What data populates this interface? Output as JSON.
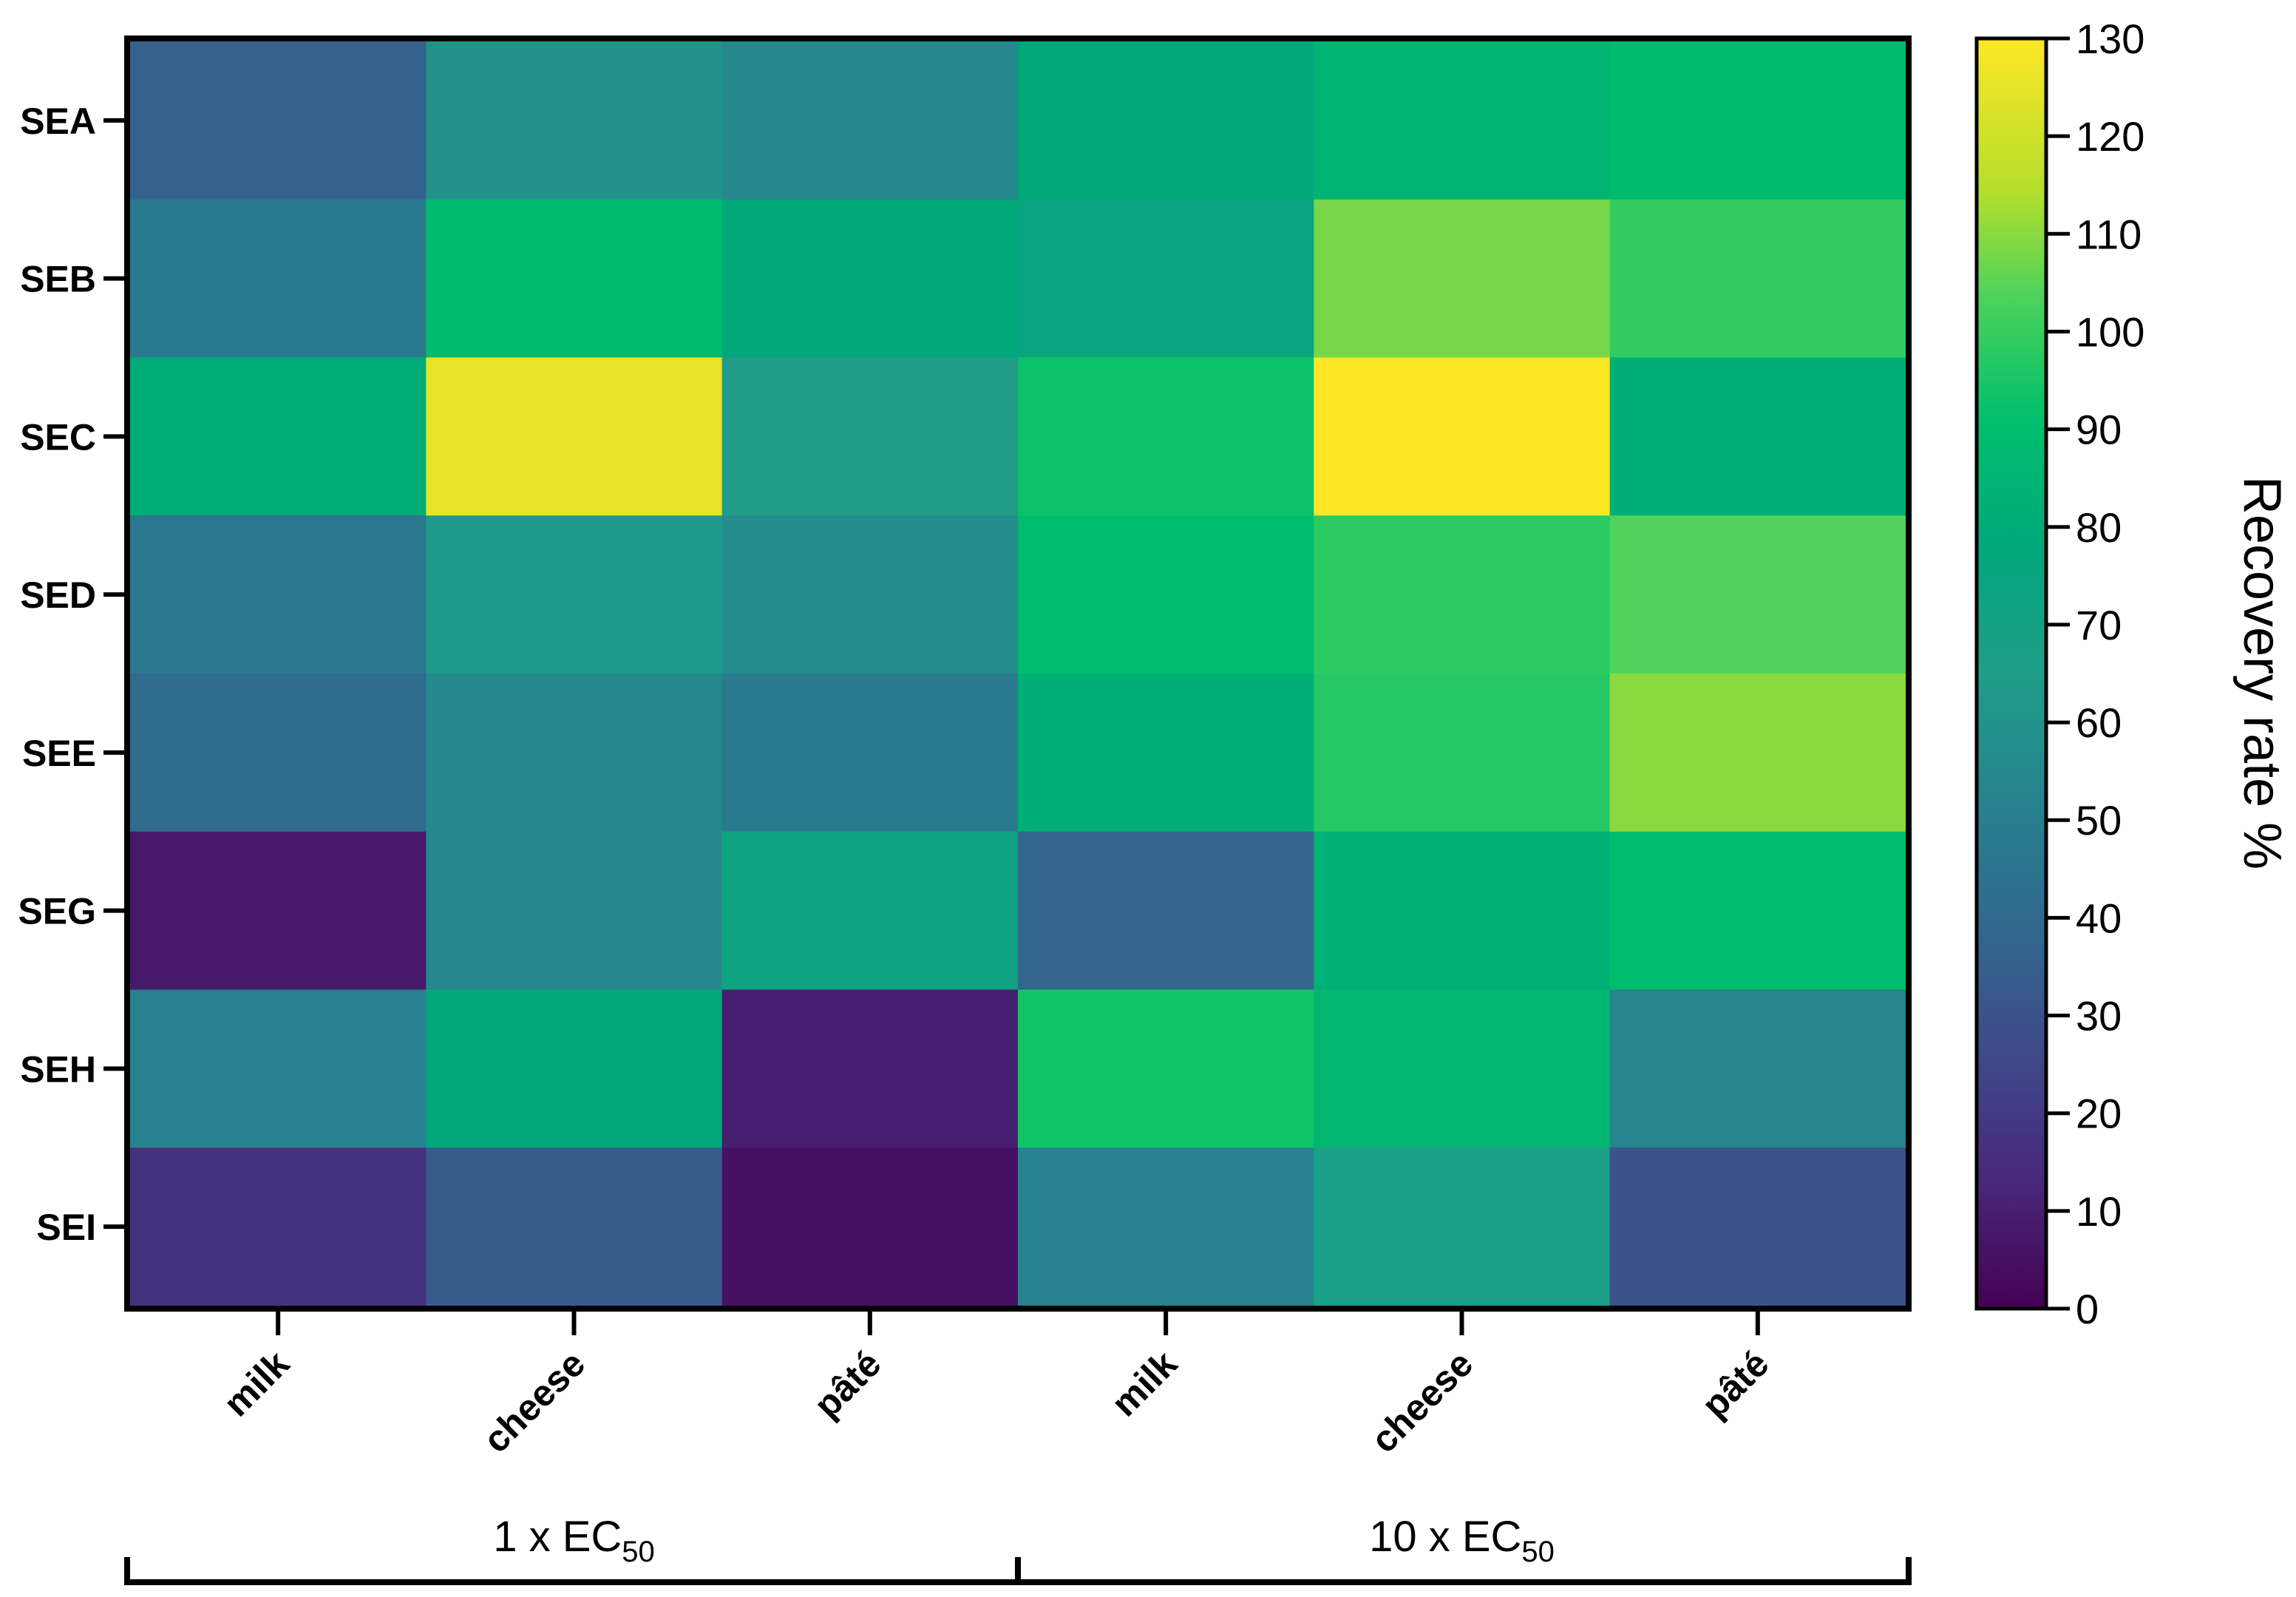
{
  "chart_data": {
    "type": "heatmap",
    "rows": [
      "SEA",
      "SEB",
      "SEC",
      "SED",
      "SEE",
      "SEG",
      "SEH",
      "SEI"
    ],
    "columns": [
      "milk",
      "cheese",
      "pâté",
      "milk",
      "cheese",
      "pâté"
    ],
    "groups": [
      {
        "label": "1 x EC",
        "subscript": "50"
      },
      {
        "label": "10 x EC",
        "subscript": "50"
      }
    ],
    "values": [
      [
        36,
        60,
        55,
        78,
        85,
        88
      ],
      [
        48,
        88,
        78,
        74,
        108,
        99
      ],
      [
        80,
        125,
        64,
        93,
        130,
        82
      ],
      [
        47,
        63,
        57,
        90,
        98,
        104
      ],
      [
        41,
        55,
        48,
        82,
        97,
        110
      ],
      [
        8,
        55,
        72,
        38,
        83,
        90
      ],
      [
        52,
        78,
        10,
        94,
        86,
        53
      ],
      [
        17,
        34,
        5,
        52,
        67,
        30
      ]
    ],
    "colorbar": {
      "label": "Recovery rate %",
      "min": 0,
      "max": 130,
      "ticks": [
        "0",
        "10",
        "20",
        "30",
        "40",
        "50",
        "60",
        "70",
        "80",
        "90",
        "100",
        "110",
        "120",
        "130"
      ],
      "colormap": "viridis"
    }
  }
}
